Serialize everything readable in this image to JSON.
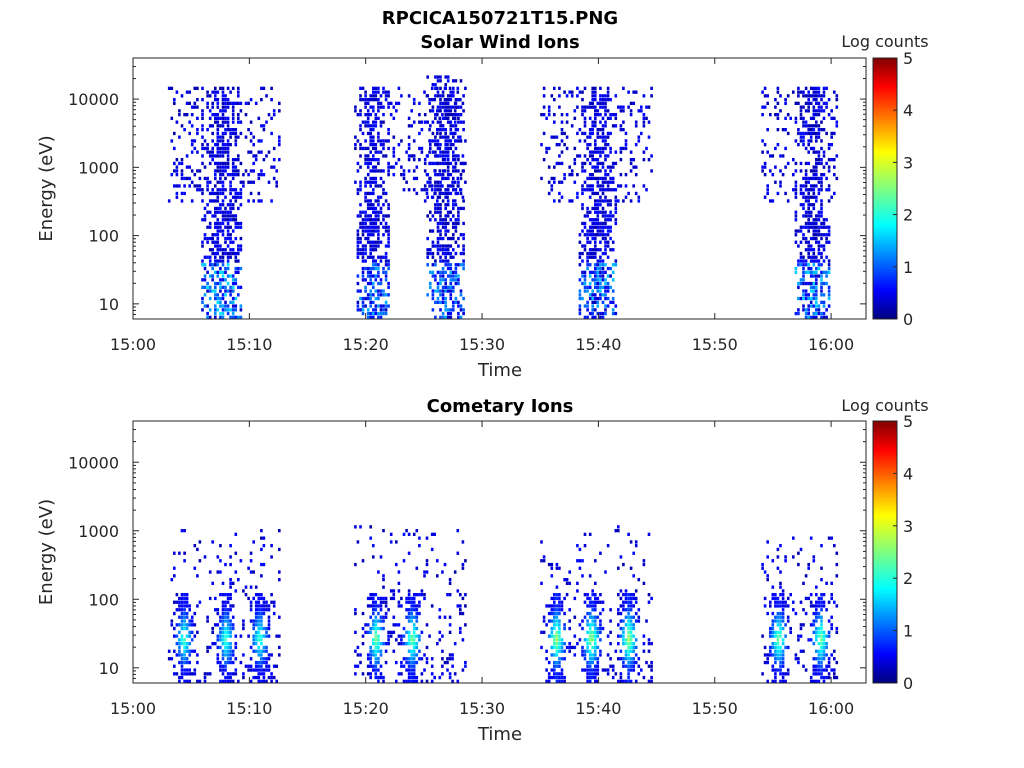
{
  "figure_title": "RPCICA150721T15.PNG",
  "chart_data": [
    {
      "type": "heatmap",
      "title": "Solar Wind Ions",
      "xlabel": "Time",
      "ylabel": "Energy (eV)",
      "x_ticks": [
        "15:00",
        "15:10",
        "15:20",
        "15:30",
        "15:40",
        "15:50",
        "16:00"
      ],
      "y_ticks": [
        "10",
        "100",
        "1000",
        "10000"
      ],
      "y_scale": "log",
      "ylim": [
        6,
        40000
      ],
      "xlim_minutes": [
        0,
        63
      ],
      "colorbar": {
        "label": "Log counts",
        "ticks": [
          "0",
          "1",
          "2",
          "3",
          "4",
          "5"
        ],
        "range": [
          0,
          5
        ],
        "colormap": "jet"
      },
      "bursts": [
        {
          "start_min": 3.0,
          "end_min": 12.5,
          "core_min": 7.5,
          "core_halfwidth": 1.8,
          "band_low_eV": 300,
          "band_high_eV": 15000,
          "core_low_eV": 6,
          "peak_log_counts": 1.5
        },
        {
          "start_min": 19.0,
          "end_min": 28.5,
          "core_min": 20.5,
          "core_halfwidth": 1.4,
          "band_low_eV": 300,
          "band_high_eV": 15000,
          "core_low_eV": 6,
          "peak_log_counts": 1.2
        },
        {
          "start_min": 25.0,
          "end_min": 28.5,
          "core_min": 26.8,
          "core_halfwidth": 1.6,
          "band_low_eV": 300,
          "band_high_eV": 20000,
          "core_low_eV": 6,
          "peak_log_counts": 1.2
        },
        {
          "start_min": 35.0,
          "end_min": 44.5,
          "core_min": 39.8,
          "core_halfwidth": 1.6,
          "band_low_eV": 300,
          "band_high_eV": 15000,
          "core_low_eV": 6,
          "peak_log_counts": 1.3
        },
        {
          "start_min": 54.0,
          "end_min": 60.5,
          "core_min": 58.3,
          "core_halfwidth": 1.6,
          "band_low_eV": 300,
          "band_high_eV": 15000,
          "core_low_eV": 6,
          "peak_log_counts": 1.4
        }
      ]
    },
    {
      "type": "heatmap",
      "title": "Cometary Ions",
      "xlabel": "Time",
      "ylabel": "Energy (eV)",
      "x_ticks": [
        "15:00",
        "15:10",
        "15:20",
        "15:30",
        "15:40",
        "15:50",
        "16:00"
      ],
      "y_ticks": [
        "10",
        "100",
        "1000",
        "10000"
      ],
      "y_scale": "log",
      "ylim": [
        6,
        40000
      ],
      "xlim_minutes": [
        0,
        63
      ],
      "colorbar": {
        "label": "Log counts",
        "ticks": [
          "0",
          "1",
          "2",
          "3",
          "4",
          "5"
        ],
        "range": [
          0,
          5
        ],
        "colormap": "jet"
      },
      "bursts": [
        {
          "start_min": 3.0,
          "end_min": 12.5,
          "hot_columns_min": [
            4.3,
            7.9,
            10.8
          ],
          "band_low_eV": 6,
          "band_high_eV": 1000,
          "core_energy_eV": 25,
          "peak_log_counts": 2.3
        },
        {
          "start_min": 19.0,
          "end_min": 28.5,
          "hot_columns_min": [
            20.8,
            23.9
          ],
          "band_low_eV": 6,
          "band_high_eV": 1200,
          "core_energy_eV": 25,
          "peak_log_counts": 2.6
        },
        {
          "start_min": 35.0,
          "end_min": 44.5,
          "hot_columns_min": [
            36.3,
            39.3,
            42.5
          ],
          "band_low_eV": 6,
          "band_high_eV": 1200,
          "core_energy_eV": 25,
          "peak_log_counts": 2.8
        },
        {
          "start_min": 54.0,
          "end_min": 60.5,
          "hot_columns_min": [
            55.4,
            59.0
          ],
          "band_low_eV": 6,
          "band_high_eV": 800,
          "core_energy_eV": 25,
          "peak_log_counts": 2.6
        }
      ]
    }
  ]
}
